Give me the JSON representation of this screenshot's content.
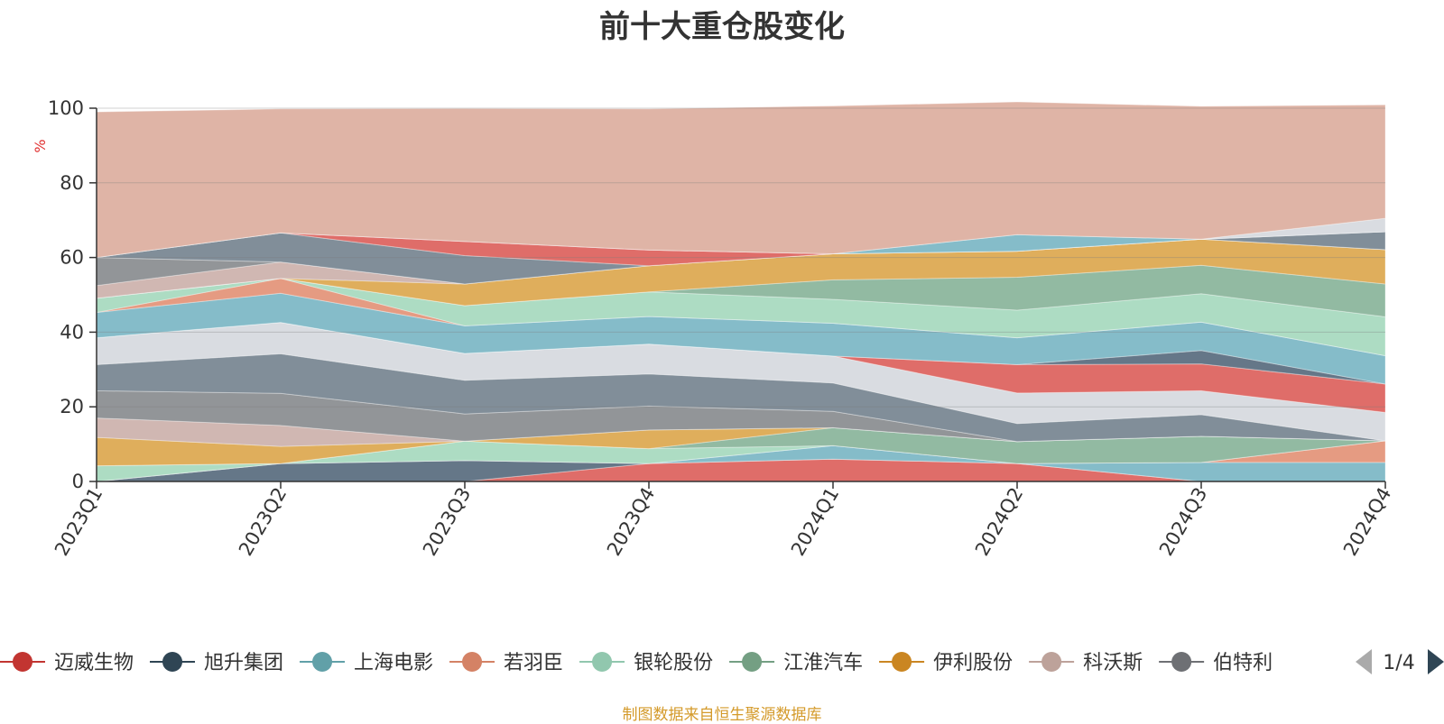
{
  "title": "前十大重仓股变化",
  "source_note": "制图数据来自恒生聚源数据库",
  "legend_pager": {
    "label": "1/4",
    "prev_icon": "triangle-left-icon",
    "next_icon": "triangle-right-icon"
  },
  "chart_data": {
    "type": "area",
    "stacked": true,
    "title": "前十大重仓股变化",
    "ylabel": "%",
    "xlabel": "",
    "ylim": [
      0,
      100
    ],
    "yticks": [
      0,
      20,
      40,
      60,
      80,
      100
    ],
    "grid": true,
    "legend_position": "bottom",
    "x": [
      "2023Q1",
      "2023Q2",
      "2023Q3",
      "2023Q4",
      "2024Q1",
      "2024Q2",
      "2024Q3",
      "2024Q4"
    ],
    "layers": [
      {
        "color": "#d9534f",
        "values": [
          0,
          0,
          0,
          4.8,
          6.0,
          4.8,
          0,
          0
        ]
      },
      {
        "color": "#4a5f73",
        "values": [
          0,
          4.8,
          5.6,
          0,
          0,
          0,
          0,
          0
        ]
      },
      {
        "color": "#70b0c0",
        "values": [
          0,
          0,
          0,
          0,
          3.6,
          0,
          5.1,
          5.1
        ]
      },
      {
        "color": "#e08a6c",
        "values": [
          0,
          0,
          0,
          0,
          0,
          0,
          0,
          5.8
        ]
      },
      {
        "color": "#9fd6b9",
        "values": [
          4.2,
          0,
          5.2,
          4.0,
          0,
          0,
          0,
          0
        ]
      },
      {
        "color": "#7fae92",
        "values": [
          0,
          0,
          0,
          0,
          4.8,
          5.9,
          7.0,
          0
        ]
      },
      {
        "color": "#d9a040",
        "values": [
          7.6,
          4.6,
          0,
          5.0,
          0,
          0,
          0,
          0
        ]
      },
      {
        "color": "#c8aaa4",
        "values": [
          5.2,
          5.6,
          0,
          0,
          0,
          0,
          0,
          0
        ]
      },
      {
        "color": "#7f8386",
        "values": [
          7.3,
          8.6,
          7.3,
          6.4,
          4.4,
          0,
          0,
          0
        ]
      },
      {
        "color": "#6b7a87",
        "values": [
          7.0,
          10.6,
          9.0,
          8.6,
          7.6,
          4.8,
          5.8,
          0
        ]
      },
      {
        "color": "#d2d6dc",
        "values": [
          7.2,
          8.4,
          7.2,
          8.0,
          7.2,
          8.2,
          6.4,
          7.6
        ]
      },
      {
        "color": "#d9534f",
        "values": [
          0,
          0,
          0,
          0,
          0,
          7.6,
          7.2,
          7.6
        ]
      },
      {
        "color": "#4a5f73",
        "values": [
          0,
          0,
          0,
          0,
          0,
          0,
          3.6,
          0
        ]
      },
      {
        "color": "#70b0c0",
        "values": [
          6.8,
          7.8,
          7.4,
          7.4,
          8.8,
          7.2,
          7.6,
          7.6
        ]
      },
      {
        "color": "#e08a6c",
        "values": [
          0,
          4.0,
          0,
          0,
          0,
          0,
          0,
          0
        ]
      },
      {
        "color": "#9fd6b9",
        "values": [
          3.8,
          0,
          5.4,
          6.6,
          6.4,
          7.4,
          7.6,
          10.4
        ]
      },
      {
        "color": "#7fae92",
        "values": [
          0,
          0,
          0,
          0,
          5.2,
          8.8,
          7.6,
          8.8
        ]
      },
      {
        "color": "#d9a040",
        "values": [
          0,
          0,
          5.8,
          7.0,
          7.0,
          7.0,
          7.0,
          9.2
        ]
      },
      {
        "color": "#c8aaa4",
        "values": [
          3.4,
          4.4,
          0,
          0,
          0,
          0,
          0,
          0
        ]
      },
      {
        "color": "#7f8386",
        "values": [
          7.5,
          0,
          0,
          0,
          0,
          0,
          0,
          0
        ]
      },
      {
        "color": "#6b7a87",
        "values": [
          0,
          7.8,
          7.6,
          0,
          0,
          0,
          0,
          4.8
        ]
      },
      {
        "color": "#d9534f",
        "values": [
          0,
          0,
          3.8,
          4.2,
          0,
          0,
          0,
          0
        ]
      },
      {
        "color": "#70b0c0",
        "values": [
          0,
          0,
          0,
          0,
          0,
          4.4,
          0,
          0
        ]
      },
      {
        "color": "#d2d6dc",
        "values": [
          0,
          0,
          0,
          0,
          0,
          0,
          0,
          3.6
        ]
      },
      {
        "color": "#d9a796",
        "values": [
          39.0,
          33.2,
          35.6,
          37.8,
          39.6,
          35.6,
          35.6,
          30.4
        ]
      }
    ],
    "legend": [
      {
        "name": "迈威生物",
        "color": "#c23531"
      },
      {
        "name": "旭升集团",
        "color": "#2f4554"
      },
      {
        "name": "上海电影",
        "color": "#61a0a8"
      },
      {
        "name": "若羽臣",
        "color": "#d48265"
      },
      {
        "name": "银轮股份",
        "color": "#91c7ae"
      },
      {
        "name": "江淮汽车",
        "color": "#749f83"
      },
      {
        "name": "伊利股份",
        "color": "#ca8622"
      },
      {
        "name": "科沃斯",
        "color": "#bda29a"
      },
      {
        "name": "伯特利",
        "color": "#6e7074"
      }
    ]
  }
}
